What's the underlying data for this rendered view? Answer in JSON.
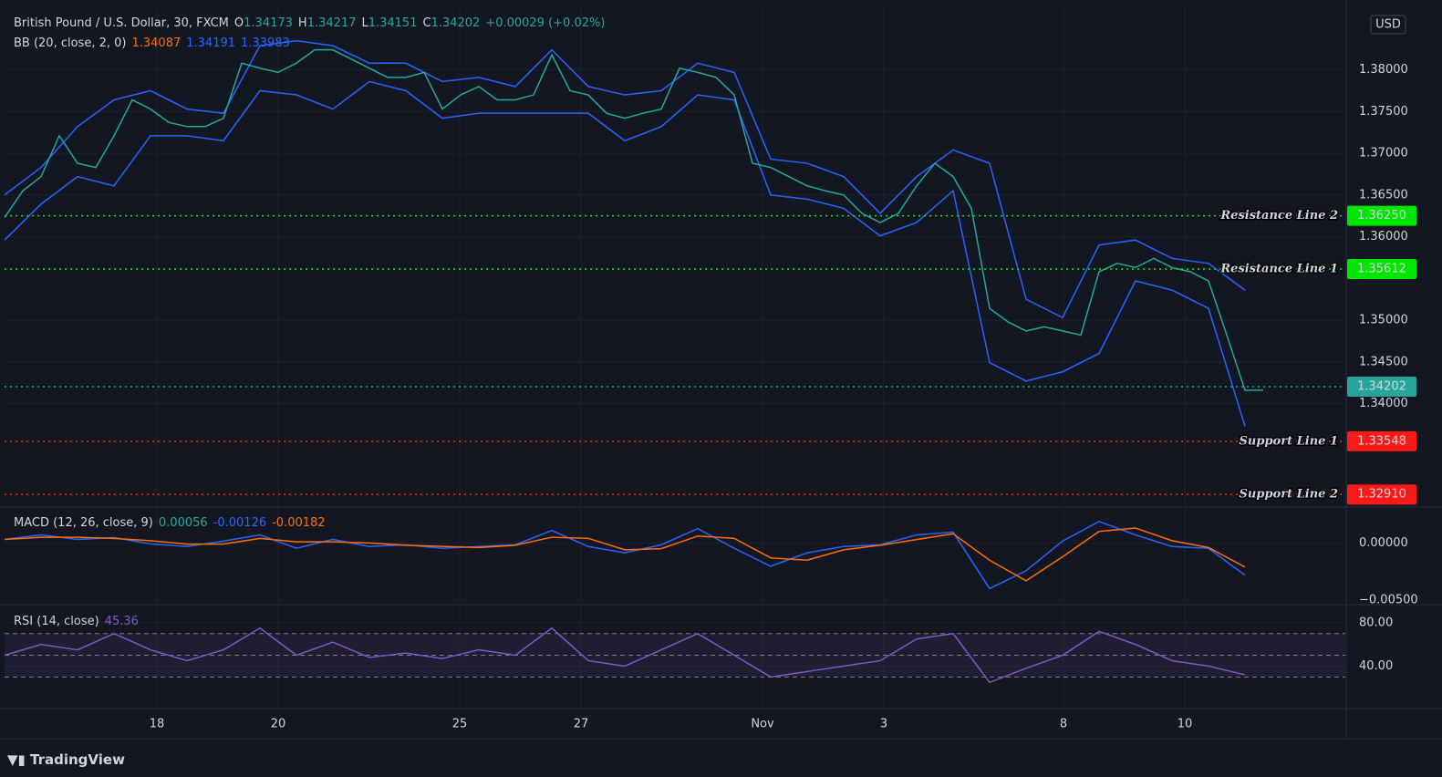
{
  "chart_data": [
    {
      "type": "line",
      "title": "British Pound / U.S. Dollar, 30, FXCM",
      "ohlc": [
        {
          "label": "O",
          "value": 1.34173
        },
        {
          "label": "H",
          "value": 1.34217
        },
        {
          "label": "L",
          "value": 1.34151
        },
        {
          "label": "C",
          "value": 1.34202
        }
      ],
      "change": "+0.00029 (+0.02%)",
      "indicator": "BB (20, close, 2, 0)",
      "indicator_values": [
        {
          "value": 1.34087,
          "color": "#ff6d00"
        },
        {
          "value": 1.34191,
          "color": "#2962ff"
        },
        {
          "value": 1.33983,
          "color": "#2962ff"
        }
      ],
      "currency": "USD",
      "xlim": [
        0,
        147
      ],
      "xticks": [
        {
          "value": 16.7,
          "label": "18"
        },
        {
          "value": 30,
          "label": "20"
        },
        {
          "value": 49.9,
          "label": "25"
        },
        {
          "value": 63.2,
          "label": "27"
        },
        {
          "value": 83.1,
          "label": "Nov"
        },
        {
          "value": 96.4,
          "label": "3"
        },
        {
          "value": 116.1,
          "label": "8"
        },
        {
          "value": 129.4,
          "label": "10"
        }
      ],
      "ylim": [
        1.3277,
        1.3875
      ],
      "yticks": [
        {
          "value": 1.38,
          "label": "1.38000"
        },
        {
          "value": 1.375,
          "label": "1.37500"
        },
        {
          "value": 1.37,
          "label": "1.37000"
        },
        {
          "value": 1.365,
          "label": "1.36500"
        },
        {
          "value": 1.36,
          "label": "1.36000"
        },
        {
          "value": 1.35,
          "label": "1.35000"
        },
        {
          "value": 1.345,
          "label": "1.34500"
        },
        {
          "value": 1.34,
          "label": "1.34000"
        }
      ],
      "grid": true,
      "series": [
        {
          "name": "BB upper",
          "color": "#2962ff",
          "x": [
            0,
            4,
            8,
            12,
            16,
            20,
            24,
            28,
            32,
            36,
            40,
            44,
            48,
            52,
            56,
            60,
            64,
            68,
            72,
            76,
            80,
            84,
            88,
            92,
            96,
            100,
            104,
            108,
            112,
            116,
            120,
            124,
            128,
            132,
            136
          ],
          "values": [
            1.365,
            1.3683,
            1.3732,
            1.3764,
            1.3775,
            1.3753,
            1.3748,
            1.3829,
            1.3835,
            1.3829,
            1.3808,
            1.3808,
            1.3786,
            1.3791,
            1.378,
            1.3824,
            1.378,
            1.377,
            1.3775,
            1.3808,
            1.3797,
            1.3693,
            1.3688,
            1.3672,
            1.3628,
            1.3672,
            1.3704,
            1.3688,
            1.3525,
            1.3503,
            1.359,
            1.3596,
            1.3574,
            1.3568,
            1.3536
          ]
        },
        {
          "name": "BB lower",
          "color": "#2962ff",
          "x": [
            0,
            4,
            8,
            12,
            16,
            20,
            24,
            28,
            32,
            36,
            40,
            44,
            48,
            52,
            56,
            60,
            64,
            68,
            72,
            76,
            80,
            84,
            88,
            92,
            96,
            100,
            104,
            108,
            112,
            116,
            120,
            124,
            128,
            132,
            136
          ],
          "values": [
            1.3596,
            1.3639,
            1.3672,
            1.3661,
            1.3721,
            1.3721,
            1.3715,
            1.3775,
            1.377,
            1.3753,
            1.3786,
            1.3775,
            1.3742,
            1.3748,
            1.3748,
            1.3748,
            1.3748,
            1.3715,
            1.3732,
            1.377,
            1.3764,
            1.365,
            1.3645,
            1.3634,
            1.3601,
            1.3617,
            1.3655,
            1.3449,
            1.3427,
            1.3438,
            1.346,
            1.3547,
            1.3536,
            1.3514,
            1.3373
          ]
        },
        {
          "name": "GBPUSD",
          "color": "#26a69a",
          "x": [
            0,
            2,
            4,
            6,
            8,
            10,
            12,
            14,
            16,
            18,
            20,
            22,
            24,
            26,
            28,
            30,
            32,
            34,
            36,
            38,
            40,
            42,
            44,
            46,
            48,
            50,
            52,
            54,
            56,
            58,
            60,
            62,
            64,
            66,
            68,
            70,
            72,
            74,
            76,
            78,
            80,
            82,
            84,
            86,
            88,
            90,
            92,
            94,
            96,
            98,
            100,
            102,
            104,
            106,
            108,
            110,
            112,
            114,
            116,
            118,
            120,
            122,
            124,
            126,
            128,
            130,
            132,
            134,
            136,
            138
          ],
          "values": [
            1.3623,
            1.3655,
            1.3672,
            1.3721,
            1.3688,
            1.3683,
            1.3721,
            1.3764,
            1.3753,
            1.3737,
            1.3732,
            1.3732,
            1.3742,
            1.3808,
            1.3802,
            1.3797,
            1.3808,
            1.3824,
            1.3824,
            1.3813,
            1.3802,
            1.3791,
            1.3791,
            1.3797,
            1.3753,
            1.377,
            1.378,
            1.3764,
            1.3764,
            1.377,
            1.3818,
            1.3775,
            1.377,
            1.3748,
            1.3742,
            1.3748,
            1.3753,
            1.3802,
            1.3797,
            1.3791,
            1.377,
            1.3688,
            1.3683,
            1.3672,
            1.3661,
            1.3655,
            1.365,
            1.3628,
            1.3617,
            1.3628,
            1.3661,
            1.3688,
            1.3672,
            1.3634,
            1.3514,
            1.3498,
            1.3487,
            1.3492,
            1.3487,
            1.3482,
            1.3558,
            1.3568,
            1.3563,
            1.3574,
            1.3563,
            1.3558,
            1.3547,
            1.3482,
            1.3416,
            1.3416
          ]
        }
      ],
      "hlines": [
        {
          "label": "Resistance Line 2",
          "value": 1.3625,
          "value_label": "1.36250",
          "color": "#00e600"
        },
        {
          "label": "Resistance Line 1",
          "value": 1.35612,
          "value_label": "1.35612",
          "color": "#00e600"
        },
        {
          "value": 1.34202,
          "value_label": "1.34202",
          "color": "#26a69a"
        },
        {
          "label": "Support Line 1",
          "value": 1.33548,
          "value_label": "1.33548",
          "color": "#ff1a1a"
        },
        {
          "label": "Support Line 2",
          "value": 1.3291,
          "value_label": "1.32910",
          "color": "#ff1a1a"
        }
      ]
    },
    {
      "type": "line",
      "indicator": "MACD (12, 26, close, 9)",
      "indicator_values": [
        {
          "value": 0.00056,
          "color": "#26a69a"
        },
        {
          "value": -0.00126,
          "color": "#2962ff"
        },
        {
          "value": -0.00182,
          "color": "#ff6d00"
        }
      ],
      "ylim": [
        -0.0053,
        0.00305
      ],
      "yticks": [
        {
          "value": 0,
          "label": "0.00000"
        },
        {
          "value": -0.005,
          "label": "−0.00500"
        }
      ],
      "series": [
        {
          "name": "MACD",
          "color": "#2962ff",
          "x": [
            0,
            4,
            8,
            12,
            16,
            20,
            24,
            28,
            32,
            36,
            40,
            44,
            48,
            52,
            56,
            60,
            64,
            68,
            72,
            76,
            80,
            84,
            88,
            92,
            96,
            100,
            104,
            108,
            112,
            116,
            120,
            124,
            128,
            132,
            136
          ],
          "values": [
            0.00031,
            0.0007,
            0.00031,
            0.00047,
            -8e-05,
            -0.00031,
            0.00016,
            0.0007,
            -0.00047,
            0.00031,
            -0.00031,
            -0.00016,
            -0.00047,
            -0.00031,
            -0.00016,
            0.00109,
            -0.00031,
            -0.00086,
            -0.00016,
            0.00125,
            -0.00047,
            -0.00203,
            -0.00086,
            -0.00031,
            -0.00016,
            0.0007,
            0.00094,
            -0.00398,
            -0.00242,
            0.00016,
            0.00187,
            0.0007,
            -0.00031,
            -0.00047,
            -0.00281
          ]
        },
        {
          "name": "Signal",
          "color": "#ff6d00",
          "x": [
            0,
            4,
            8,
            12,
            16,
            20,
            24,
            28,
            32,
            36,
            40,
            44,
            48,
            52,
            56,
            60,
            64,
            68,
            72,
            76,
            80,
            84,
            88,
            92,
            96,
            100,
            104,
            108,
            112,
            116,
            120,
            124,
            128,
            132,
            136
          ],
          "values": [
            0.00031,
            0.0005,
            0.0005,
            0.0004,
            0.0002,
            -0.0001,
            -0.0001,
            0.0004,
            0.0001,
            0.0001,
            0,
            -0.0002,
            -0.0003,
            -0.0004,
            -0.0002,
            0.0005,
            0.0004,
            -0.0006,
            -0.0005,
            0.0006,
            0.0004,
            -0.0013,
            -0.0015,
            -0.0006,
            -0.0002,
            0.0003,
            0.0008,
            -0.0015,
            -0.0033,
            -0.0012,
            0.001,
            0.0013,
            0.0002,
            -0.0004,
            -0.0021
          ]
        }
      ]
    },
    {
      "type": "line",
      "indicator": "RSI (14, close)",
      "indicator_values": [
        {
          "value": 45.36,
          "color": "#7e57c2"
        }
      ],
      "ylim": [
        1.7,
        95.8
      ],
      "yticks": [
        {
          "value": 80,
          "label": "80.00"
        },
        {
          "value": 40,
          "label": "40.00"
        }
      ],
      "levels": [
        70,
        50,
        30
      ],
      "series": [
        {
          "name": "RSI",
          "color": "#7e57c2",
          "x": [
            0,
            4,
            8,
            12,
            16,
            20,
            24,
            28,
            32,
            36,
            40,
            44,
            48,
            52,
            56,
            60,
            64,
            68,
            72,
            76,
            80,
            84,
            88,
            92,
            96,
            100,
            104,
            108,
            112,
            116,
            120,
            124,
            128,
            132,
            136
          ],
          "values": [
            50,
            60,
            55,
            70,
            55,
            45,
            55,
            75,
            50,
            62,
            48,
            52,
            47,
            55,
            50,
            75,
            45,
            40,
            55,
            70,
            50,
            30,
            35,
            40,
            45,
            65,
            70,
            25,
            38,
            50,
            72,
            60,
            45,
            40,
            32
          ]
        }
      ]
    }
  ]
}
